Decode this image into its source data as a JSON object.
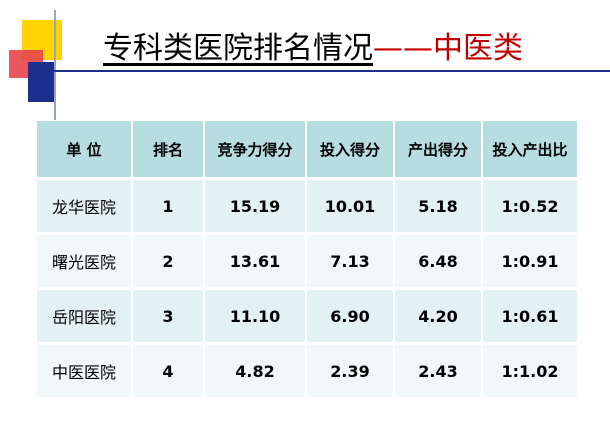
{
  "title": {
    "main": "专科类医院排名情况",
    "dash": "——",
    "sub": "中医类"
  },
  "table": {
    "headers": [
      "单 位",
      "排名",
      "竞争力得分",
      "投入得分",
      "产出得分",
      "投入产出比"
    ],
    "rows": [
      [
        "龙华医院",
        "1",
        "15.19",
        "10.01",
        "5.18",
        "1:0.52"
      ],
      [
        "曙光医院",
        "2",
        "13.61",
        "7.13",
        "6.48",
        "1:0.91"
      ],
      [
        "岳阳医院",
        "3",
        "11.10",
        "6.90",
        "4.20",
        "1:0.61"
      ],
      [
        "中医医院",
        "4",
        "4.82",
        "2.39",
        "2.43",
        "1:1.02"
      ]
    ]
  },
  "colors": {
    "header_bg": "#b7dde1",
    "row_bg_odd": "#e4f1f3",
    "row_bg_even": "#f2f8f9",
    "title_accent": "#c00000"
  }
}
